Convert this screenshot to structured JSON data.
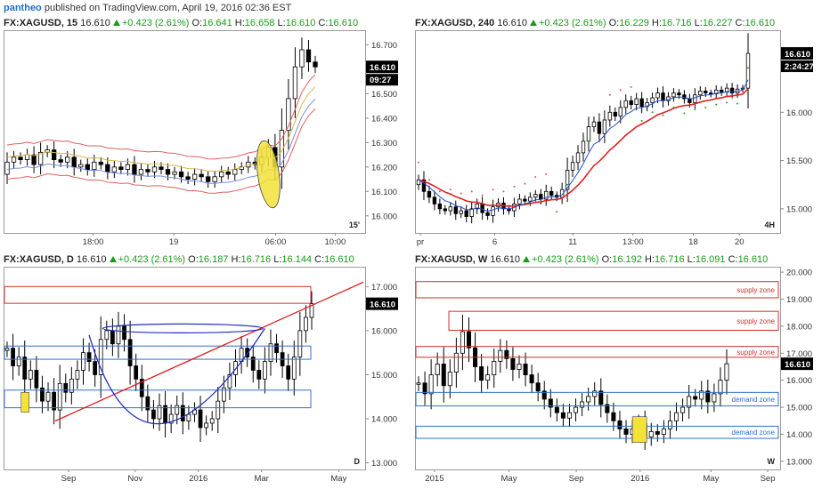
{
  "topbar": {
    "user": "pantheo",
    "text": "published on TradingView.com, April 19, 2016 02:36 EST"
  },
  "colors": {
    "up_accent": "#1a9a1a",
    "candle": "#000000",
    "ema_red": "#e02020",
    "ema_blue": "#2050d0",
    "supply": "#d03030",
    "demand": "#3070d0",
    "highlight": "#f2e23a"
  },
  "panels": [
    {
      "header": {
        "symbol": "FX:XAGUSD, 15",
        "price": "16.610",
        "change": "+0.423 (2.61%)",
        "o_label": "O:",
        "o": "16.641",
        "h_label": "H:",
        "h": "16.658",
        "l_label": "L:",
        "l": "16.610",
        "c_label": "C:",
        "c": "16.610"
      },
      "y_ticks": [
        "16.700",
        "16.600",
        "16.500",
        "16.400",
        "16.300",
        "16.200",
        "16.100",
        "16.000"
      ],
      "x_ticks": [
        "18:00",
        "19",
        "06:00",
        "10:00"
      ],
      "price_label": "16.610",
      "countdown": "09:27",
      "interval": "15'"
    },
    {
      "header": {
        "symbol": "FX:XAGUSD, 240",
        "price": "16.610",
        "change": "+0.423 (2.61%)",
        "o_label": "O:",
        "o": "16.229",
        "h_label": "H:",
        "h": "16.716",
        "l_label": "L:",
        "l": "16.227",
        "c_label": "C:",
        "c": "16.610"
      },
      "y_ticks": [
        "16.000",
        "15.500",
        "15.000"
      ],
      "x_ticks": [
        "pr",
        "6",
        "11",
        "13:00",
        "18",
        "20"
      ],
      "price_label": "16.610",
      "countdown": "2:24:27",
      "interval": "4H"
    },
    {
      "header": {
        "symbol": "FX:XAGUSD, D",
        "price": "16.610",
        "change": "+0.423 (2.61%)",
        "o_label": "O:",
        "o": "16.187",
        "h_label": "H:",
        "h": "16.716",
        "l_label": "L:",
        "l": "16.144",
        "c_label": "C:",
        "c": "16.610"
      },
      "y_ticks": [
        "17.000",
        "16.000",
        "15.000",
        "14.000",
        "13.000"
      ],
      "x_ticks": [
        "Sep",
        "Nov",
        "2016",
        "Mar",
        "May"
      ],
      "price_label": "16.610",
      "interval": "D"
    },
    {
      "header": {
        "symbol": "FX:XAGUSD, W",
        "price": "16.610",
        "change": "+0.423 (2.61%)",
        "o_label": "O:",
        "o": "16.192",
        "h_label": "H:",
        "h": "16.716",
        "l_label": "L:",
        "l": "16.091",
        "c_label": "C:",
        "c": "16.610"
      },
      "y_ticks": [
        "20.000",
        "19.000",
        "18.000",
        "17.000",
        "16.000",
        "15.000",
        "14.000",
        "13.000"
      ],
      "x_ticks": [
        "2015",
        "May",
        "Sep",
        "2016",
        "May",
        "Sep"
      ],
      "price_label": "16.610",
      "interval": "W",
      "zones": [
        "supply zone",
        "supply zone",
        "supply zone",
        "demand zone",
        "demand zone"
      ]
    }
  ],
  "chart_data": [
    {
      "type": "candlestick",
      "symbol": "FX:XAGUSD",
      "interval": "15",
      "ylim": [
        15.93,
        16.76
      ],
      "x_ticks": [
        "18:00",
        "19",
        "06:00",
        "10:00"
      ],
      "closes": [
        16.22,
        16.24,
        16.23,
        16.25,
        16.21,
        16.26,
        16.27,
        16.23,
        16.22,
        16.24,
        16.2,
        16.21,
        16.19,
        16.22,
        16.21,
        16.18,
        16.2,
        16.19,
        16.21,
        16.17,
        16.19,
        16.18,
        16.2,
        16.19,
        16.17,
        16.18,
        16.16,
        16.15,
        16.17,
        16.16,
        16.14,
        16.16,
        16.18,
        16.17,
        16.19,
        16.2,
        16.22,
        16.21,
        16.24,
        16.28,
        16.2,
        16.35,
        16.48,
        16.61,
        16.68,
        16.63,
        16.61
      ],
      "supply_demand_note": "highlighted breakout area",
      "indicators": [
        "EMA",
        "Bollinger Bands"
      ]
    },
    {
      "type": "candlestick",
      "symbol": "FX:XAGUSD",
      "interval": "240",
      "ylim": [
        14.75,
        16.85
      ],
      "x_ticks": [
        "pr",
        "6",
        "11",
        "13:00",
        "18",
        "20"
      ],
      "closes": [
        15.3,
        15.18,
        15.12,
        15.05,
        15.0,
        14.98,
        15.02,
        14.95,
        14.98,
        14.92,
        15.0,
        15.05,
        14.96,
        14.93,
        15.02,
        15.06,
        15.0,
        14.98,
        15.05,
        15.1,
        15.08,
        15.12,
        15.15,
        15.1,
        15.18,
        15.14,
        15.12,
        15.2,
        15.4,
        15.48,
        15.58,
        15.7,
        15.85,
        15.9,
        15.78,
        15.92,
        16.0,
        15.96,
        16.05,
        16.12,
        16.08,
        16.14,
        16.06,
        16.1,
        16.15,
        16.2,
        16.12,
        16.16,
        16.2,
        16.18,
        16.14,
        16.1,
        16.18,
        16.22,
        16.2,
        16.19,
        16.23,
        16.21,
        16.25,
        16.2,
        16.24,
        16.25,
        16.61
      ],
      "indicators": [
        "EMA red",
        "EMA blue",
        "Parabolic SAR"
      ]
    },
    {
      "type": "candlestick",
      "symbol": "FX:XAGUSD",
      "interval": "D",
      "ylim": [
        12.85,
        17.45
      ],
      "x_ticks": [
        "Sep",
        "Nov",
        "2016",
        "Mar",
        "May"
      ],
      "closes": [
        15.6,
        15.2,
        15.4,
        14.9,
        15.1,
        14.7,
        14.4,
        14.6,
        14.2,
        14.8,
        14.6,
        14.9,
        15.1,
        15.5,
        15.3,
        15.0,
        15.8,
        16.0,
        15.7,
        16.1,
        15.8,
        15.2,
        14.9,
        14.5,
        14.2,
        14.0,
        14.3,
        13.9,
        14.1,
        14.3,
        13.95,
        14.1,
        14.2,
        13.8,
        13.9,
        14.0,
        14.4,
        14.7,
        15.0,
        15.3,
        15.6,
        15.4,
        15.1,
        14.9,
        15.3,
        15.7,
        15.5,
        15.2,
        14.9,
        15.4,
        16.0,
        16.3,
        16.61
      ],
      "annotations": [
        "rising trendline",
        "rounded bottom",
        "supply/demand zones"
      ]
    },
    {
      "type": "candlestick",
      "symbol": "FX:XAGUSD",
      "interval": "W",
      "ylim": [
        12.7,
        20.2
      ],
      "x_ticks": [
        "2015",
        "May",
        "Sep",
        "2016",
        "May",
        "Sep"
      ],
      "closes": [
        15.9,
        15.5,
        16.2,
        16.6,
        15.8,
        16.3,
        17.0,
        17.8,
        17.2,
        16.5,
        16.0,
        16.2,
        16.7,
        17.1,
        16.8,
        16.4,
        16.6,
        16.2,
        15.9,
        15.6,
        15.3,
        15.0,
        14.8,
        14.6,
        14.8,
        15.0,
        15.2,
        15.4,
        15.6,
        15.1,
        14.8,
        14.5,
        14.2,
        14.0,
        14.2,
        14.4,
        13.9,
        14.1,
        14.0,
        14.2,
        14.5,
        14.8,
        15.0,
        15.4,
        15.3,
        15.6,
        15.2,
        15.5,
        16.0,
        16.61
      ],
      "zones": [
        {
          "kind": "supply zone",
          "from": 19.05,
          "to": 19.65
        },
        {
          "kind": "supply zone",
          "from": 17.85,
          "to": 18.55
        },
        {
          "kind": "supply zone",
          "from": 16.85,
          "to": 17.25
        },
        {
          "kind": "demand zone",
          "from": 15.05,
          "to": 15.55
        },
        {
          "kind": "demand zone",
          "from": 13.85,
          "to": 14.3
        }
      ]
    }
  ]
}
